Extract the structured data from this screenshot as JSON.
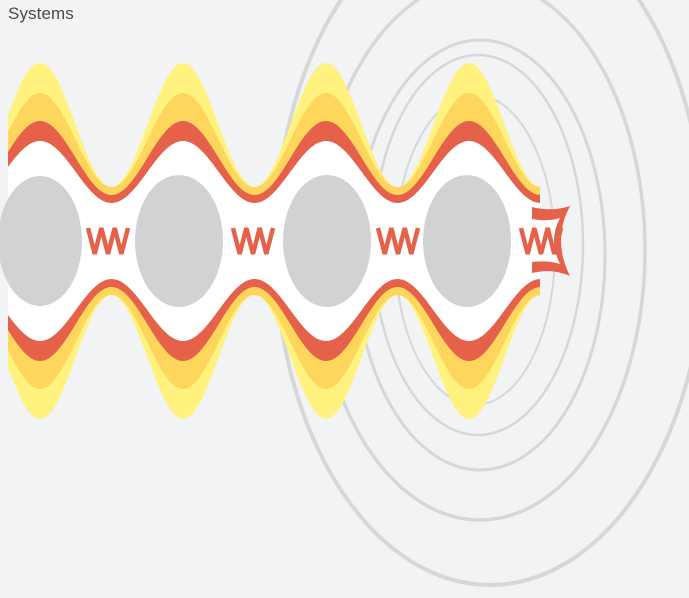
{
  "header": {
    "title": "Systems"
  },
  "illustration": {
    "icon": "wave-interference-illustration",
    "colors": {
      "background": "#f2f3f5",
      "rings": "#d6d7d9",
      "outer_band": "#fff27f",
      "middle_band": "#ffd65c",
      "inner_band": "#e6614a",
      "core_gap": "#ffffff",
      "ellipse": "#d1d2d4"
    }
  }
}
